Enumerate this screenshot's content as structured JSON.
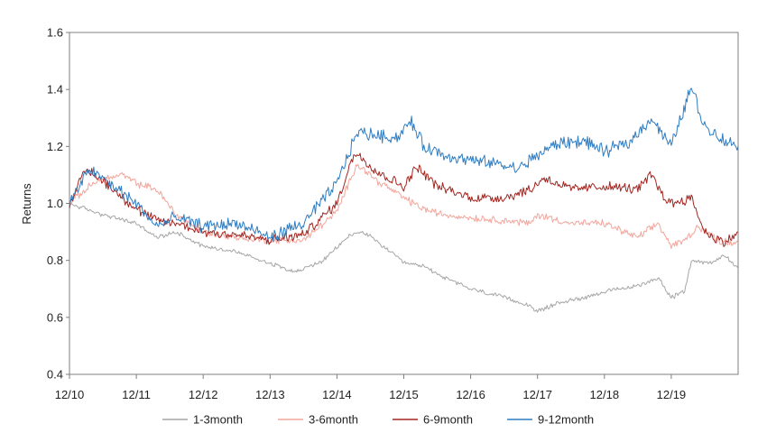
{
  "chart_data": {
    "type": "line",
    "title": "",
    "xlabel": "",
    "ylabel": "Returns",
    "ylim": [
      0.4,
      1.6
    ],
    "yticks": [
      "0.4",
      "0.6",
      "0.8",
      "1.0",
      "1.2",
      "1.4",
      "1.6"
    ],
    "xlim": [
      2010,
      2020
    ],
    "xticks": [
      "12/10",
      "12/11",
      "12/12",
      "12/13",
      "12/14",
      "12/15",
      "12/16",
      "12/17",
      "12/18",
      "12/19"
    ],
    "grid": false,
    "legend_position": "bottom",
    "series": [
      {
        "name": "1-3month",
        "color": "#a6a6a6",
        "points": [
          [
            2010,
            1.0
          ],
          [
            2010.5,
            0.96
          ],
          [
            2011,
            0.93
          ],
          [
            2011.3,
            0.88
          ],
          [
            2011.6,
            0.9
          ],
          [
            2012,
            0.85
          ],
          [
            2012.5,
            0.83
          ],
          [
            2013,
            0.79
          ],
          [
            2013.4,
            0.76
          ],
          [
            2013.8,
            0.8
          ],
          [
            2014.2,
            0.89
          ],
          [
            2014.4,
            0.9
          ],
          [
            2014.8,
            0.83
          ],
          [
            2015,
            0.79
          ],
          [
            2015.3,
            0.78
          ],
          [
            2015.6,
            0.74
          ],
          [
            2016,
            0.7
          ],
          [
            2016.5,
            0.67
          ],
          [
            2016.9,
            0.64
          ],
          [
            2017,
            0.62
          ],
          [
            2017.3,
            0.65
          ],
          [
            2017.7,
            0.67
          ],
          [
            2018,
            0.69
          ],
          [
            2018.5,
            0.71
          ],
          [
            2018.8,
            0.74
          ],
          [
            2019,
            0.67
          ],
          [
            2019.2,
            0.69
          ],
          [
            2019.3,
            0.8
          ],
          [
            2019.6,
            0.79
          ],
          [
            2019.8,
            0.82
          ],
          [
            2020,
            0.77
          ]
        ]
      },
      {
        "name": "3-6month",
        "color": "#f2a59c",
        "points": [
          [
            2010,
            1.0
          ],
          [
            2010.4,
            1.08
          ],
          [
            2010.8,
            1.1
          ],
          [
            2011,
            1.07
          ],
          [
            2011.3,
            1.05
          ],
          [
            2011.6,
            0.96
          ],
          [
            2012,
            0.9
          ],
          [
            2012.5,
            0.88
          ],
          [
            2013,
            0.87
          ],
          [
            2013.5,
            0.87
          ],
          [
            2014,
            0.97
          ],
          [
            2014.3,
            1.14
          ],
          [
            2014.6,
            1.08
          ],
          [
            2015,
            1.02
          ],
          [
            2015.3,
            0.98
          ],
          [
            2015.6,
            0.96
          ],
          [
            2016,
            0.95
          ],
          [
            2016.5,
            0.94
          ],
          [
            2016.9,
            0.93
          ],
          [
            2017,
            0.96
          ],
          [
            2017.5,
            0.93
          ],
          [
            2018,
            0.93
          ],
          [
            2018.5,
            0.88
          ],
          [
            2018.8,
            0.93
          ],
          [
            2019,
            0.85
          ],
          [
            2019.2,
            0.87
          ],
          [
            2019.4,
            0.92
          ],
          [
            2019.7,
            0.87
          ],
          [
            2020,
            0.86
          ]
        ]
      },
      {
        "name": "6-9month",
        "color": "#a32621",
        "points": [
          [
            2010,
            1.0
          ],
          [
            2010.25,
            1.12
          ],
          [
            2010.5,
            1.08
          ],
          [
            2010.8,
            1.02
          ],
          [
            2011,
            0.98
          ],
          [
            2011.3,
            0.94
          ],
          [
            2011.6,
            0.93
          ],
          [
            2012,
            0.9
          ],
          [
            2012.5,
            0.89
          ],
          [
            2013,
            0.87
          ],
          [
            2013.5,
            0.89
          ],
          [
            2014,
            1.0
          ],
          [
            2014.2,
            1.14
          ],
          [
            2014.3,
            1.18
          ],
          [
            2014.6,
            1.11
          ],
          [
            2015,
            1.06
          ],
          [
            2015.2,
            1.13
          ],
          [
            2015.5,
            1.06
          ],
          [
            2016,
            1.02
          ],
          [
            2016.5,
            1.02
          ],
          [
            2016.9,
            1.05
          ],
          [
            2017.1,
            1.09
          ],
          [
            2017.5,
            1.05
          ],
          [
            2018,
            1.06
          ],
          [
            2018.5,
            1.05
          ],
          [
            2018.7,
            1.1
          ],
          [
            2018.9,
            1.02
          ],
          [
            2019,
            1.0
          ],
          [
            2019.3,
            1.02
          ],
          [
            2019.5,
            0.9
          ],
          [
            2019.8,
            0.86
          ],
          [
            2020,
            0.9
          ]
        ]
      },
      {
        "name": "9-12month",
        "color": "#2e7cc2",
        "points": [
          [
            2010,
            1.0
          ],
          [
            2010.3,
            1.12
          ],
          [
            2010.6,
            1.07
          ],
          [
            2011,
            1.0
          ],
          [
            2011.3,
            0.92
          ],
          [
            2011.6,
            0.95
          ],
          [
            2012,
            0.92
          ],
          [
            2012.5,
            0.93
          ],
          [
            2013,
            0.88
          ],
          [
            2013.5,
            0.93
          ],
          [
            2014,
            1.07
          ],
          [
            2014.3,
            1.25
          ],
          [
            2014.6,
            1.24
          ],
          [
            2014.9,
            1.23
          ],
          [
            2015.1,
            1.29
          ],
          [
            2015.3,
            1.2
          ],
          [
            2015.6,
            1.17
          ],
          [
            2016,
            1.15
          ],
          [
            2016.4,
            1.14
          ],
          [
            2016.7,
            1.12
          ],
          [
            2017,
            1.17
          ],
          [
            2017.3,
            1.21
          ],
          [
            2017.7,
            1.22
          ],
          [
            2018,
            1.18
          ],
          [
            2018.4,
            1.22
          ],
          [
            2018.7,
            1.3
          ],
          [
            2019,
            1.2
          ],
          [
            2019.3,
            1.41
          ],
          [
            2019.5,
            1.27
          ],
          [
            2019.8,
            1.22
          ],
          [
            2020,
            1.2
          ]
        ]
      }
    ]
  }
}
